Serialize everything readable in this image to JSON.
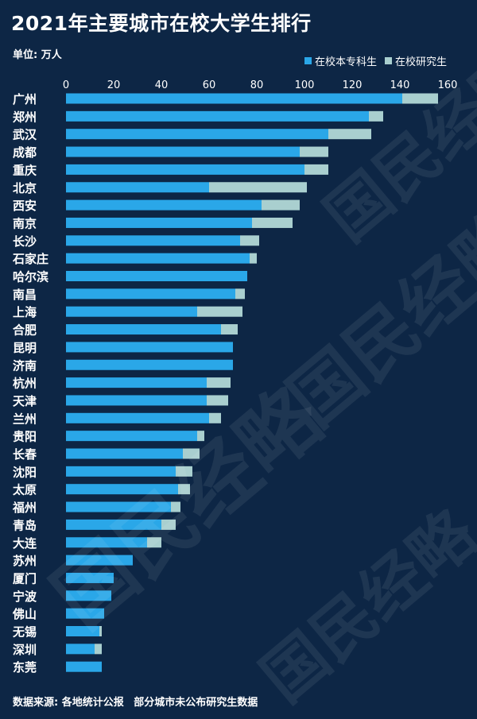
{
  "header": {
    "title": "2021年主要城市在校大学生排行",
    "unit": "单位: 万人"
  },
  "legend": {
    "items": [
      {
        "label": "在校本专科生",
        "color": "#2aa7e8"
      },
      {
        "label": "在校研究生",
        "color": "#a9cfcf"
      }
    ]
  },
  "footer": {
    "source": "数据来源: 各地统计公报",
    "note": "部分城市未公布研究生数据"
  },
  "watermark": {
    "text_large": "国民经略",
    "text_small": "国民经略"
  },
  "chart_data": {
    "type": "bar",
    "orientation": "horizontal",
    "stacked": true,
    "title": "2021年主要城市在校大学生排行",
    "xlim": [
      0,
      160
    ],
    "xticks": [
      0,
      20,
      40,
      60,
      80,
      100,
      120,
      140,
      160
    ],
    "grid": false,
    "legend_position": "top-right",
    "categories": [
      "广州",
      "郑州",
      "武汉",
      "成都",
      "重庆",
      "北京",
      "西安",
      "南京",
      "长沙",
      "石家庄",
      "哈尔滨",
      "南昌",
      "上海",
      "合肥",
      "昆明",
      "济南",
      "杭州",
      "天津",
      "兰州",
      "贵阳",
      "长春",
      "沈阳",
      "太原",
      "福州",
      "青岛",
      "大连",
      "苏州",
      "厦门",
      "宁波",
      "佛山",
      "无锡",
      "深圳",
      "东莞"
    ],
    "series": [
      {
        "name": "在校本专科生",
        "color": "#2aa7e8",
        "values": [
          141,
          127,
          110,
          98,
          100,
          60,
          82,
          78,
          73,
          77,
          76,
          71,
          55,
          65,
          70,
          70,
          59,
          59,
          60,
          55,
          49,
          46,
          47,
          44,
          40,
          34,
          28,
          20,
          19,
          16,
          14,
          12,
          15
        ]
      },
      {
        "name": "在校研究生",
        "color": "#a9cfcf",
        "values": [
          15,
          6,
          18,
          12,
          10,
          41,
          16,
          17,
          8,
          3,
          0,
          4,
          19,
          7,
          0,
          0,
          10,
          9,
          5,
          3,
          7,
          7,
          5,
          4,
          6,
          6,
          0,
          0,
          0,
          0,
          1,
          3,
          0
        ]
      }
    ]
  }
}
